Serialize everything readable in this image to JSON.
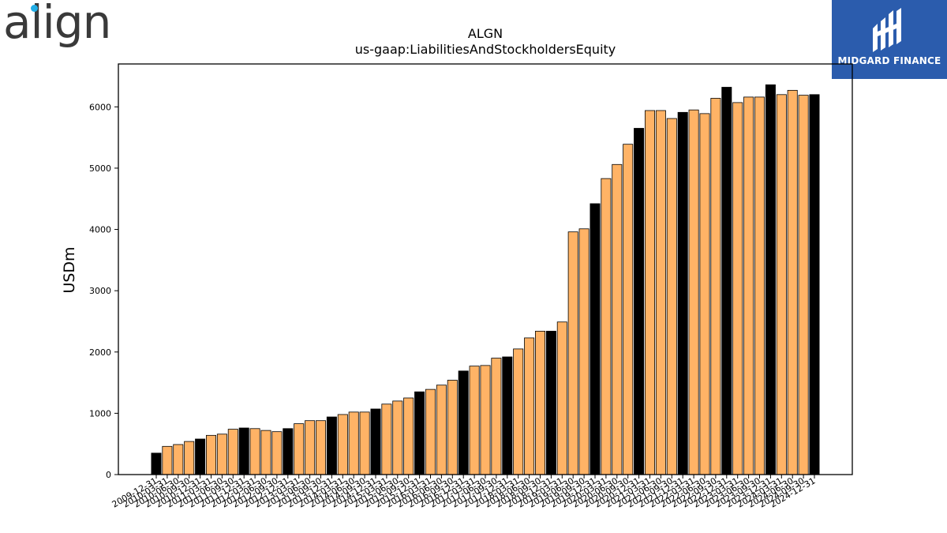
{
  "branding": {
    "company_logo_text": "align",
    "sponsor_name": "MIDGARD FINANCE"
  },
  "colors": {
    "quarter_bar": "#ffb366",
    "year_end_bar": "#000000",
    "sponsor_bg": "#2b5cad",
    "logo_accent": "#22aee6"
  },
  "chart_data": {
    "type": "bar",
    "title": "ALGN",
    "subtitle": "us-gaap:LiabilitiesAndStockholdersEquity",
    "xlabel": "",
    "ylabel": "USDm",
    "ylim": [
      0,
      6700
    ],
    "yticks": [
      0,
      1000,
      2000,
      3000,
      4000,
      5000,
      6000
    ],
    "grid": false,
    "categories": [
      "2009-12-31",
      "2010-03-31",
      "2010-06-30",
      "2010-09-30",
      "2010-12-31",
      "2011-03-31",
      "2011-06-30",
      "2011-09-30",
      "2011-12-31",
      "2012-03-31",
      "2012-06-30",
      "2012-09-30",
      "2012-12-31",
      "2013-03-31",
      "2013-06-30",
      "2013-09-30",
      "2013-12-31",
      "2014-03-31",
      "2014-06-30",
      "2014-09-30",
      "2014-12-31",
      "2015-03-31",
      "2015-06-30",
      "2015-09-30",
      "2015-12-31",
      "2016-03-31",
      "2016-06-30",
      "2016-09-30",
      "2016-12-31",
      "2017-03-31",
      "2017-06-30",
      "2017-09-30",
      "2017-12-31",
      "2018-03-31",
      "2018-06-30",
      "2018-09-30",
      "2018-12-31",
      "2019-03-31",
      "2019-06-30",
      "2019-09-30",
      "2019-12-31",
      "2020-03-31",
      "2020-06-30",
      "2020-09-30",
      "2020-12-31",
      "2021-03-31",
      "2021-06-30",
      "2021-09-30",
      "2021-12-31",
      "2022-03-31",
      "2022-06-30",
      "2022-09-30",
      "2022-12-31",
      "2023-03-31",
      "2023-06-30",
      "2023-09-30",
      "2023-12-31",
      "2024-03-31",
      "2024-06-30",
      "2024-09-30",
      "2024-12-31"
    ],
    "tick_labels": [
      "2009-12-31",
      "2010-03-31",
      "2010-06-30",
      "2010-09-30",
      "2010-12-31",
      "2011-03-31",
      "2011-06-30",
      "2011-09-30",
      "2011-12-31",
      "2012-03-31",
      "2012-06-30",
      "2012-09-30",
      "2012-12-31",
      "2013-03-31",
      "2013-06-30",
      "2013-09-30",
      "2013-12-31",
      "2014-03-31",
      "2014-06-30",
      "2014-09-30",
      "2014-12-31",
      "2015-03-31",
      "2015-06-30",
      "2015-09-30",
      "2015-12-31",
      "2016-03-31",
      "2016-06-30",
      "2016-09-30",
      "2016-12-31",
      "2017-03-31",
      "2017-06-30",
      "2017-09-30",
      "2017-12-31",
      "2018-03-31",
      "2018-06-30",
      "2018-09-30",
      "2018-12-31",
      "2019-03-31",
      "2019-06-30",
      "2019-09-30",
      "2019-12-31",
      "2020-03-31",
      "2020-06-30",
      "2020-09-30",
      "2020-12-31",
      "2021-03-31",
      "2021-06-30",
      "2021-09-30",
      "2021-12-31",
      "2022-03-31",
      "2022-06-30",
      "2022-09-30",
      "2022-12-31",
      "2023-03-31",
      "2023-06-30",
      "2023-09-30",
      "2023-12-31",
      "2024-03-31",
      "2024-06-30",
      "2024-09-30",
      "2024-12-31"
    ],
    "values": [
      350,
      460,
      490,
      540,
      580,
      640,
      660,
      740,
      760,
      750,
      720,
      700,
      750,
      830,
      880,
      880,
      940,
      980,
      1020,
      1020,
      1070,
      1150,
      1200,
      1250,
      1350,
      1390,
      1460,
      1540,
      1690,
      1770,
      1780,
      1900,
      1920,
      2050,
      2230,
      2340,
      2340,
      2490,
      3960,
      4010,
      4420,
      4830,
      5060,
      5390,
      5650,
      5940,
      5940,
      5810,
      5910,
      5950,
      5890,
      6140,
      6320,
      6070,
      6160,
      6160,
      6360,
      6200,
      6270,
      6190,
      6200
    ],
    "year_end": [
      true,
      false,
      false,
      false,
      true,
      false,
      false,
      false,
      true,
      false,
      false,
      false,
      true,
      false,
      false,
      false,
      true,
      false,
      false,
      false,
      true,
      false,
      false,
      false,
      true,
      false,
      false,
      false,
      true,
      false,
      false,
      false,
      true,
      false,
      false,
      false,
      true,
      false,
      false,
      false,
      true,
      false,
      false,
      false,
      true,
      false,
      false,
      false,
      true,
      false,
      false,
      false,
      true,
      false,
      false,
      false,
      true,
      false,
      false,
      false,
      true
    ]
  }
}
